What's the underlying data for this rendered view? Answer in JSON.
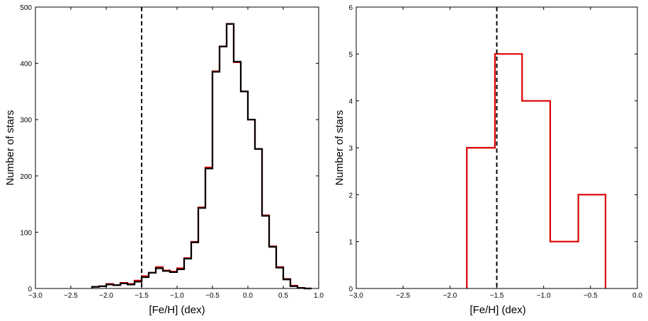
{
  "chart_data": [
    {
      "type": "histogram",
      "xlabel": "[Fe/H] (dex)",
      "ylabel": "Number of stars",
      "xlim": [
        -3.0,
        1.0
      ],
      "ylim": [
        0,
        500
      ],
      "xticks": [
        "-3.0",
        "-2.5",
        "-2.0",
        "-1.5",
        "-1.0",
        "-0.5",
        "0.0",
        "0.5",
        "1.0"
      ],
      "yticks": [
        "0",
        "100",
        "200",
        "300",
        "400",
        "500"
      ],
      "vline": -1.5,
      "bin_edges": [
        -2.2,
        -2.1,
        -2.0,
        -1.9,
        -1.8,
        -1.7,
        -1.6,
        -1.5,
        -1.4,
        -1.3,
        -1.2,
        -1.1,
        -1.0,
        -0.9,
        -0.8,
        -0.7,
        -0.6,
        -0.5,
        -0.4,
        -0.3,
        -0.2,
        -0.1,
        0.0,
        0.1,
        0.2,
        0.3,
        0.4,
        0.5,
        0.6,
        0.7,
        0.8,
        0.9
      ],
      "series": [
        {
          "color": "#dd0000",
          "counts": [
            3,
            4,
            8,
            6,
            10,
            8,
            14,
            22,
            28,
            38,
            32,
            30,
            36,
            54,
            83,
            144,
            215,
            386,
            430,
            470,
            402,
            350,
            300,
            248,
            130,
            75,
            38,
            17,
            5,
            1,
            0
          ]
        },
        {
          "color": "#000000",
          "counts": [
            3,
            4,
            7,
            6,
            9,
            7,
            12,
            20,
            28,
            36,
            31,
            29,
            34,
            53,
            82,
            143,
            213,
            385,
            430,
            470,
            403,
            350,
            300,
            248,
            129,
            74,
            37,
            16,
            4,
            1,
            0
          ]
        }
      ]
    },
    {
      "type": "histogram",
      "xlabel": "[Fe/H] (dex)",
      "ylabel": "Number of stars",
      "xlim": [
        -3.0,
        0.0
      ],
      "ylim": [
        0,
        6
      ],
      "xticks": [
        "-3.0",
        "-2.5",
        "-2.0",
        "-1.5",
        "-1.0",
        "-0.5",
        "0.0"
      ],
      "yticks": [
        "0",
        "1",
        "2",
        "3",
        "4",
        "5",
        "6"
      ],
      "vline": -1.5,
      "bin_edges": [
        -1.82,
        -1.52,
        -1.23,
        -0.93,
        -0.63,
        -0.34
      ],
      "series": [
        {
          "color": "#dd0000",
          "counts": [
            3,
            5,
            4,
            1,
            2
          ]
        }
      ]
    }
  ]
}
